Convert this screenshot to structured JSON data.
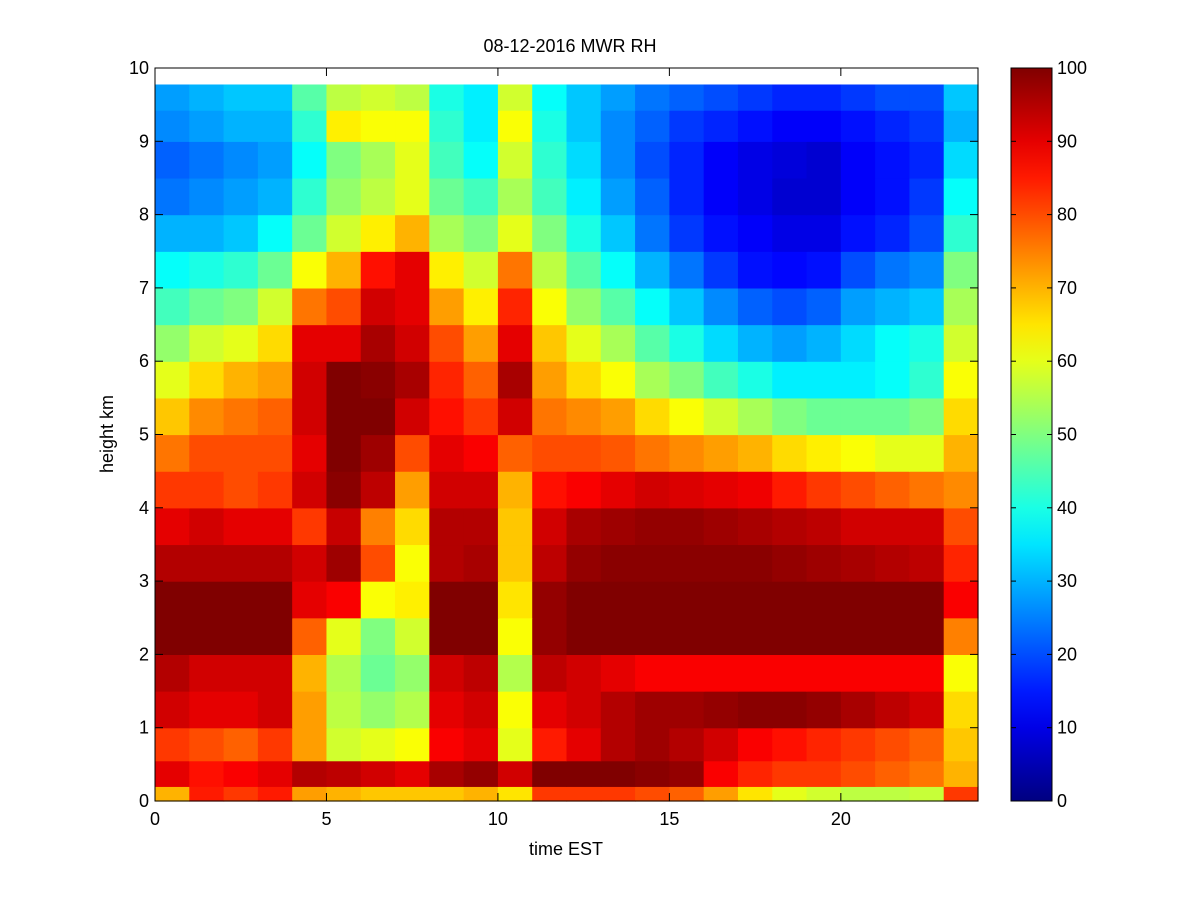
{
  "chart_data": {
    "type": "heatmap",
    "title": "08-12-2016 MWR RH",
    "xlabel": "time EST",
    "ylabel": "height km",
    "xlim": [
      0,
      24
    ],
    "ylim": [
      0,
      10
    ],
    "xticks": [
      0,
      5,
      10,
      15,
      20
    ],
    "yticks": [
      0,
      1,
      2,
      3,
      4,
      5,
      6,
      7,
      8,
      9,
      10
    ],
    "colorbar": {
      "range": [
        0,
        100
      ],
      "ticks": [
        0,
        10,
        20,
        30,
        40,
        50,
        60,
        70,
        80,
        90,
        100
      ],
      "colormap": "jet"
    },
    "grid": false,
    "time_columns": [
      0,
      1,
      2,
      3,
      4,
      5,
      6,
      7,
      8,
      9,
      10,
      11,
      12,
      13,
      14,
      15,
      16,
      17,
      18,
      19,
      20,
      21,
      22,
      23
    ],
    "height_levels": [
      0.05,
      0.35,
      0.75,
      1.25,
      1.75,
      2.25,
      2.75,
      3.25,
      3.75,
      4.25,
      4.75,
      5.25,
      5.75,
      6.25,
      6.75,
      7.25,
      7.75,
      8.25,
      8.75,
      9.25,
      9.6
    ],
    "rh_percent": [
      [
        70,
        85,
        82,
        85,
        72,
        70,
        68,
        68,
        68,
        70,
        65,
        82,
        82,
        82,
        80,
        78,
        72,
        65,
        60,
        58,
        56,
        56,
        57,
        82
      ],
      [
        90,
        86,
        88,
        90,
        95,
        94,
        92,
        90,
        96,
        98,
        92,
        100,
        100,
        100,
        99,
        98,
        88,
        84,
        82,
        82,
        80,
        78,
        76,
        70
      ],
      [
        82,
        80,
        78,
        82,
        72,
        58,
        60,
        62,
        88,
        90,
        60,
        85,
        90,
        95,
        97,
        95,
        92,
        88,
        86,
        84,
        82,
        80,
        78,
        68
      ],
      [
        92,
        90,
        90,
        92,
        72,
        56,
        52,
        55,
        90,
        92,
        62,
        90,
        92,
        95,
        97,
        97,
        98,
        99,
        99,
        98,
        96,
        94,
        92,
        66
      ],
      [
        95,
        92,
        92,
        92,
        70,
        55,
        48,
        52,
        92,
        94,
        55,
        94,
        92,
        90,
        88,
        88,
        88,
        88,
        88,
        88,
        88,
        88,
        88,
        62
      ],
      [
        100,
        100,
        100,
        100,
        78,
        60,
        50,
        58,
        100,
        100,
        62,
        98,
        100,
        100,
        100,
        100,
        100,
        100,
        100,
        100,
        100,
        100,
        100,
        75
      ],
      [
        100,
        100,
        100,
        100,
        90,
        88,
        62,
        64,
        100,
        100,
        65,
        98,
        100,
        100,
        100,
        100,
        100,
        100,
        100,
        100,
        100,
        100,
        100,
        88
      ],
      [
        95,
        95,
        95,
        95,
        92,
        97,
        80,
        62,
        95,
        96,
        68,
        94,
        98,
        99,
        99,
        99,
        99,
        99,
        98,
        97,
        96,
        95,
        94,
        84
      ],
      [
        90,
        92,
        90,
        90,
        82,
        93,
        75,
        66,
        95,
        95,
        68,
        92,
        96,
        97,
        98,
        98,
        97,
        96,
        95,
        94,
        92,
        92,
        92,
        80
      ],
      [
        82,
        82,
        80,
        82,
        92,
        99,
        94,
        72,
        92,
        92,
        70,
        86,
        88,
        90,
        92,
        91,
        90,
        89,
        85,
        82,
        80,
        78,
        76,
        74
      ],
      [
        76,
        80,
        80,
        80,
        90,
        100,
        97,
        80,
        90,
        88,
        78,
        80,
        80,
        79,
        76,
        74,
        72,
        70,
        66,
        64,
        62,
        60,
        60,
        70
      ],
      [
        68,
        74,
        76,
        78,
        92,
        100,
        100,
        92,
        86,
        82,
        92,
        76,
        74,
        72,
        66,
        62,
        58,
        54,
        50,
        48,
        48,
        48,
        50,
        66
      ],
      [
        60,
        66,
        70,
        72,
        92,
        100,
        99,
        96,
        84,
        78,
        96,
        72,
        66,
        62,
        54,
        50,
        44,
        40,
        36,
        36,
        36,
        38,
        42,
        62
      ],
      [
        52,
        58,
        60,
        66,
        90,
        90,
        96,
        92,
        80,
        72,
        90,
        68,
        60,
        54,
        46,
        40,
        34,
        30,
        28,
        30,
        34,
        38,
        40,
        58
      ],
      [
        44,
        48,
        50,
        58,
        76,
        80,
        92,
        90,
        72,
        64,
        84,
        62,
        52,
        46,
        38,
        32,
        26,
        22,
        20,
        22,
        28,
        30,
        32,
        54
      ],
      [
        38,
        40,
        42,
        48,
        62,
        70,
        86,
        90,
        64,
        58,
        76,
        56,
        46,
        38,
        30,
        24,
        18,
        14,
        13,
        14,
        20,
        24,
        26,
        50
      ],
      [
        30,
        30,
        32,
        38,
        48,
        58,
        64,
        70,
        54,
        50,
        60,
        50,
        40,
        32,
        24,
        18,
        14,
        12,
        10,
        10,
        14,
        16,
        20,
        42
      ],
      [
        24,
        26,
        28,
        30,
        42,
        52,
        56,
        60,
        48,
        44,
        54,
        44,
        36,
        28,
        22,
        16,
        12,
        10,
        8,
        8,
        12,
        14,
        18,
        38
      ],
      [
        22,
        24,
        26,
        28,
        38,
        50,
        54,
        60,
        44,
        38,
        58,
        42,
        34,
        26,
        20,
        16,
        12,
        10,
        9,
        8,
        12,
        14,
        16,
        34
      ],
      [
        26,
        28,
        30,
        30,
        42,
        64,
        62,
        62,
        42,
        36,
        62,
        40,
        32,
        26,
        22,
        18,
        16,
        14,
        12,
        12,
        14,
        16,
        18,
        30
      ],
      [
        28,
        30,
        32,
        32,
        46,
        56,
        58,
        56,
        40,
        36,
        58,
        38,
        32,
        28,
        24,
        22,
        20,
        18,
        16,
        16,
        18,
        20,
        20,
        32
      ]
    ]
  }
}
